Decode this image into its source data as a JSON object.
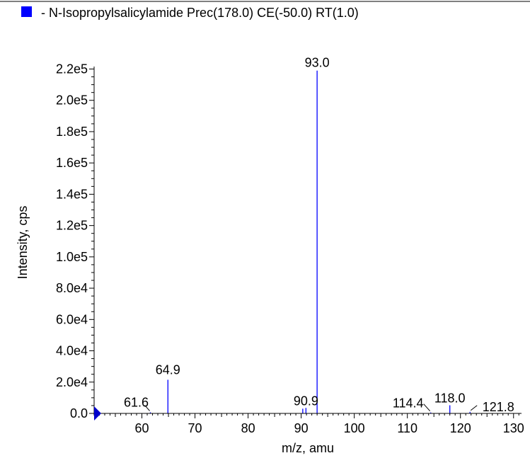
{
  "chart_data": {
    "type": "bar",
    "legend": {
      "text": "- N-Isopropylsalicylamide Prec(178.0) CE(-50.0) RT(1.0)",
      "color": "#0000ff",
      "placement": "top-left"
    },
    "xlabel": "m/z, amu",
    "ylabel": "Intensity, cps",
    "xlim": [
      51,
      131.5
    ],
    "ylim": [
      0,
      230000
    ],
    "x_ticks": [
      {
        "value": 60,
        "label": "60"
      },
      {
        "value": 70,
        "label": "70"
      },
      {
        "value": 80,
        "label": "80"
      },
      {
        "value": 90,
        "label": "90"
      },
      {
        "value": 100,
        "label": "100"
      },
      {
        "value": 110,
        "label": "110"
      },
      {
        "value": 120,
        "label": "120"
      },
      {
        "value": 130,
        "label": "130"
      }
    ],
    "y_ticks": [
      {
        "value": 0,
        "label": "0.0"
      },
      {
        "value": 20000,
        "label": "2.0e4"
      },
      {
        "value": 40000,
        "label": "4.0e4"
      },
      {
        "value": 60000,
        "label": "6.0e4"
      },
      {
        "value": 80000,
        "label": "8.0e4"
      },
      {
        "value": 100000,
        "label": "1.0e5"
      },
      {
        "value": 120000,
        "label": "1.2e5"
      },
      {
        "value": 140000,
        "label": "1.4e5"
      },
      {
        "value": 160000,
        "label": "1.6e5"
      },
      {
        "value": 180000,
        "label": "1.8e5"
      },
      {
        "value": 200000,
        "label": "2.0e5"
      },
      {
        "value": 220000,
        "label": "2.2e5"
      }
    ],
    "peak_color": "#0000ff",
    "peaks": [
      {
        "mz": 61.6,
        "intensity": 700
      },
      {
        "mz": 64.9,
        "intensity": 21500
      },
      {
        "mz": 90.3,
        "intensity": 3000
      },
      {
        "mz": 90.9,
        "intensity": 3500
      },
      {
        "mz": 93.0,
        "intensity": 219000
      },
      {
        "mz": 114.4,
        "intensity": 600
      },
      {
        "mz": 118.0,
        "intensity": 5200
      },
      {
        "mz": 121.8,
        "intensity": 1000
      }
    ],
    "peak_labels": [
      {
        "mz": 61.6,
        "intensity": 700,
        "text": "61.6"
      },
      {
        "mz": 64.9,
        "intensity": 21500,
        "text": "64.9"
      },
      {
        "mz": 90.9,
        "intensity": 3500,
        "text": "90.9"
      },
      {
        "mz": 93.0,
        "intensity": 219000,
        "text": "93.0"
      },
      {
        "mz": 114.4,
        "intensity": 600,
        "text": "114.4"
      },
      {
        "mz": 118.0,
        "intensity": 5200,
        "text": "118.0"
      },
      {
        "mz": 121.8,
        "intensity": 1000,
        "text": "121.8"
      }
    ]
  }
}
